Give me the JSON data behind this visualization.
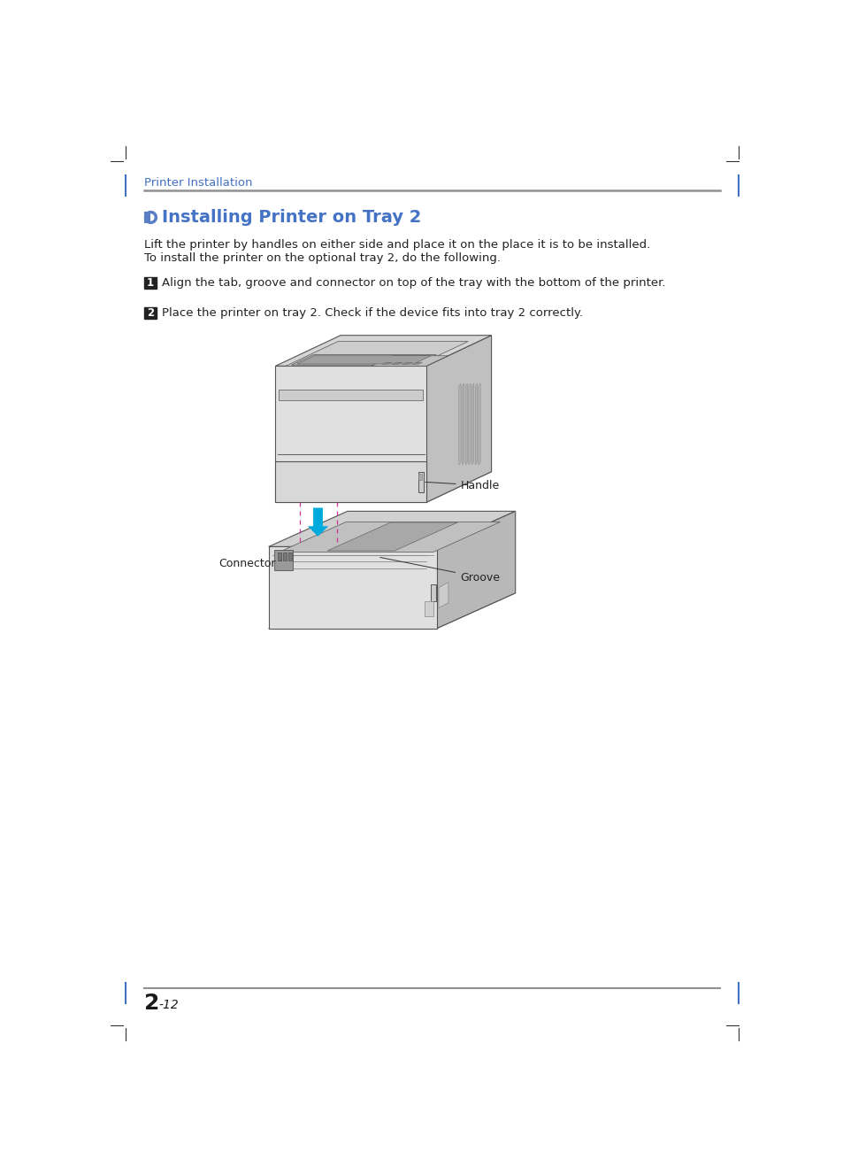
{
  "page_bg": "#ffffff",
  "header_text": "Printer Installation",
  "header_color": "#4472C4",
  "header_line_color": "#909090",
  "section_title": "Installing Printer on Tray 2",
  "section_title_color": "#4472C4",
  "section_icon_color": "#5b7fc4",
  "body_text_color": "#222222",
  "body_line1": "Lift the printer by handles on either side and place it on the place it is to be installed.",
  "body_line2": "To install the printer on the optional tray 2, do the following.",
  "step1_num": "1",
  "step1_text": "Align the tab, groove and connector on top of the tray with the bottom of the printer.",
  "step2_num": "2",
  "step2_text": "Place the printer on tray 2. Check if the device fits into tray 2 correctly.",
  "step_box_color": "#222222",
  "step_text_color": "#ffffff",
  "label_handle": "Handle",
  "label_connector": "Connector",
  "label_groove": "Groove",
  "label_color": "#222222",
  "footer_line_color": "#909090",
  "footer_text": "2",
  "footer_sub": "-12",
  "footer_text_color": "#1a1a1a",
  "margin_line_color": "#4472C4",
  "corner_line_color": "#333333",
  "dashed_line_color": "#cc3399",
  "arrow_color": "#00aadd",
  "printer_face_color": "#e8e8e8",
  "printer_side_color": "#c0c0c0",
  "printer_top_color": "#d8d8d8",
  "printer_dark_color": "#888888",
  "printer_edge_color": "#555555",
  "tray_face_color": "#e0e0e0",
  "tray_side_color": "#b8b8b8",
  "tray_top_color": "#d0d0d0",
  "tray_inner_color": "#c8c8c8"
}
